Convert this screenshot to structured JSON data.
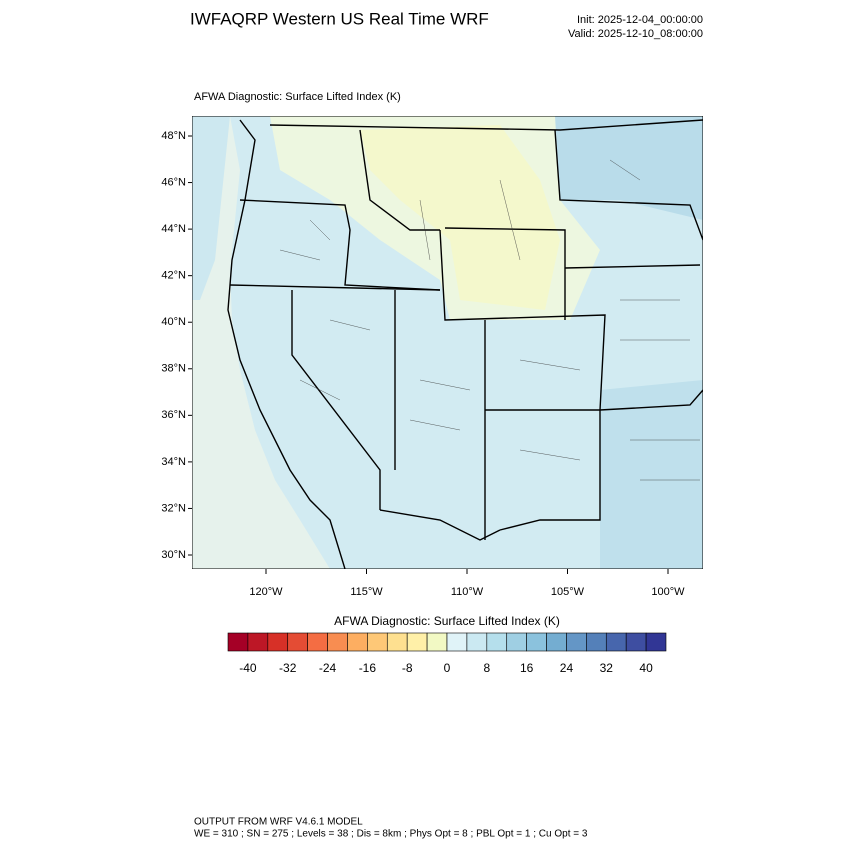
{
  "header": {
    "title": "IWFAQRP Western US Real Time WRF",
    "init": "Init: 2025-12-04_00:00:00",
    "valid": "Valid: 2025-12-10_08:00:00"
  },
  "map": {
    "title": "AFWA Diagnostic: Surface Lifted Index   (K)",
    "lat_labels": [
      "48°N",
      "46°N",
      "44°N",
      "42°N",
      "40°N",
      "38°N",
      "36°N",
      "34°N",
      "32°N",
      "30°N"
    ],
    "lon_labels": [
      "120°W",
      "115°W",
      "110°W",
      "105°W",
      "100°W"
    ]
  },
  "colorbar": {
    "title": "AFWA Diagnostic: Surface Lifted Index  (K)",
    "colors": [
      "#a50026",
      "#bd1726",
      "#d73027",
      "#e44c34",
      "#f46d43",
      "#f88d51",
      "#fdae61",
      "#fec877",
      "#fee090",
      "#fff0a8",
      "#f2f9c4",
      "#e0f3f8",
      "#cbe9f2",
      "#b5dfec",
      "#9fcfe3",
      "#8bc2dd",
      "#74add1",
      "#6496c6",
      "#5480b9",
      "#4766ad",
      "#3e4ea1",
      "#313695"
    ],
    "labels": [
      "-40",
      "-32",
      "-24",
      "-16",
      "-8",
      "0",
      "8",
      "16",
      "24",
      "32",
      "40"
    ]
  },
  "footer": {
    "line1": "OUTPUT FROM WRF V4.6.1 MODEL",
    "line2": "WE = 310 ; SN = 275 ; Levels = 38 ; Dis = 8km ; Phys Opt = 8 ; PBL Opt = 1 ; Cu Opt = 3"
  }
}
